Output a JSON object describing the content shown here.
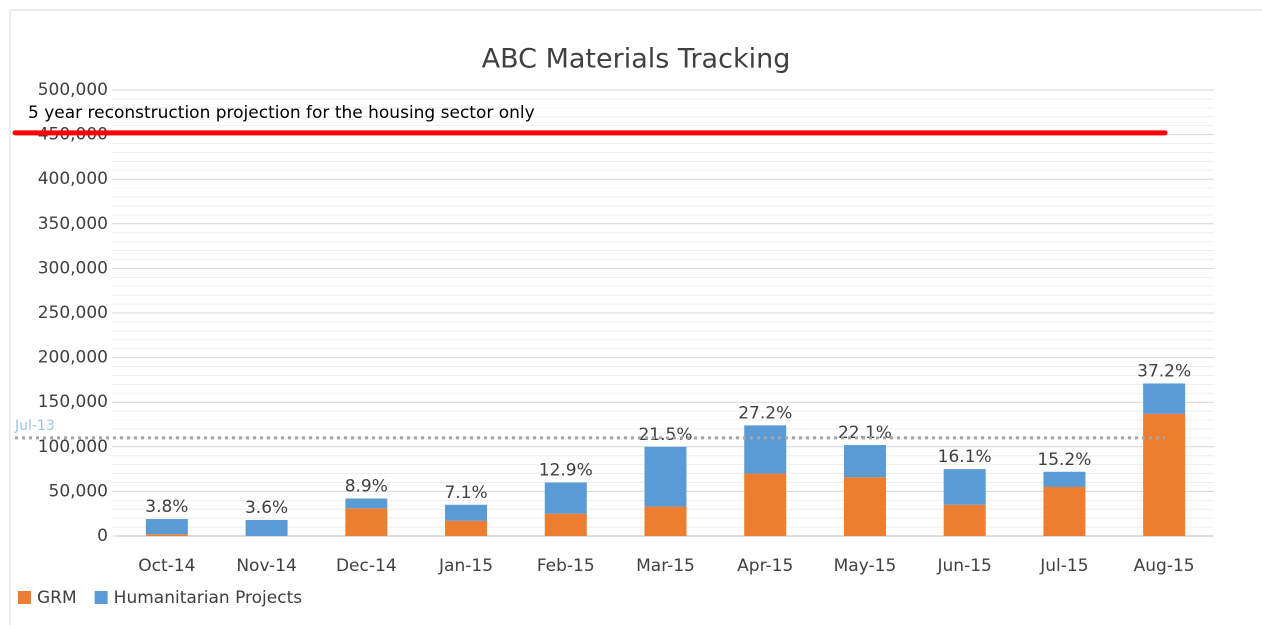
{
  "chart_data": {
    "type": "stacked_bar",
    "title": "ABC Materials Tracking",
    "categories": [
      "Oct-14",
      "Nov-14",
      "Dec-14",
      "Jan-15",
      "Feb-15",
      "Mar-15",
      "Apr-15",
      "May-15",
      "Jun-15",
      "Jul-15",
      "Aug-15"
    ],
    "series": [
      {
        "name": "GRM",
        "color": "#ed7d31",
        "values": [
          2000,
          0,
          31000,
          17000,
          25000,
          33000,
          70000,
          66000,
          35000,
          55000,
          137000
        ]
      },
      {
        "name": "Humanitarian Projects",
        "color": "#5b9bd5",
        "values": [
          17000,
          18000,
          11000,
          18000,
          35000,
          67000,
          54000,
          36000,
          40000,
          17000,
          34000
        ]
      }
    ],
    "data_labels": [
      "3.8%",
      "3.6%",
      "8.9%",
      "7.1%",
      "12.9%",
      "21.5%",
      "27.2%",
      "22.1%",
      "16.1%",
      "15.2%",
      "37.2%"
    ],
    "ylim": [
      0,
      500000
    ],
    "yticks": [
      0,
      {
        "value": 50000,
        "label": "50,000"
      },
      {
        "value": 100000,
        "label": "100,000"
      },
      {
        "value": 150000,
        "label": "150,000"
      },
      {
        "value": 200000,
        "label": "200,000"
      },
      {
        "value": 250000,
        "label": "250,000"
      },
      {
        "value": 300000,
        "label": "300,000"
      },
      {
        "value": 350000,
        "label": "350,000"
      },
      {
        "value": 400000,
        "label": "400,000"
      },
      {
        "value": 450000,
        "label": "450,000"
      },
      {
        "value": {
          "value": 500000
        },
        "label": "500,000"
      }
    ],
    "grid": true,
    "target_line": {
      "value": 452000,
      "label": "5 year reconstruction projection for the housing sector only",
      "color": "#ff0000"
    },
    "reference_line": {
      "value": 110000,
      "label": "Jul-13",
      "color": "#a5a5a5"
    },
    "legend": "bottom-left"
  }
}
